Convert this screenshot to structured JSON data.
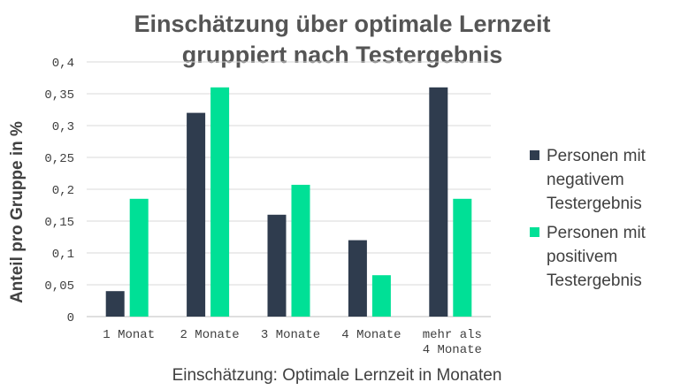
{
  "chart_data": {
    "type": "bar",
    "title": "Einschätzung über optimale Lernzeit",
    "subtitle": "gruppiert nach Testergebnis",
    "xlabel": "Einschätzung: Optimale Lernzeit in Monaten",
    "ylabel": "Anteil pro Gruppe in %",
    "categories": [
      [
        "1 Monat"
      ],
      [
        "2 Monate"
      ],
      [
        "3 Monate"
      ],
      [
        "4 Monate"
      ],
      [
        "mehr als",
        "4 Monate"
      ]
    ],
    "series": [
      {
        "name": "Personen mit negativem Testergebnis",
        "legend_lines": [
          "Personen mit",
          "negativem",
          "Testergebnis"
        ],
        "color": "#2f3c4e",
        "values": [
          0.04,
          0.32,
          0.16,
          0.12,
          0.36
        ]
      },
      {
        "name": "Personen mit positivem Testergebnis",
        "legend_lines": [
          "Personen mit",
          "positivem",
          "Testergebnis"
        ],
        "color": "#00e096",
        "values": [
          0.185,
          0.36,
          0.207,
          0.065,
          0.185
        ]
      }
    ],
    "ylim": [
      0,
      0.4
    ],
    "yticks": [
      0,
      0.05,
      0.1,
      0.15,
      0.2,
      0.25,
      0.3,
      0.35,
      0.4
    ],
    "ytick_labels": [
      "0",
      "0,05",
      "0,1",
      "0,15",
      "0,2",
      "0,25",
      "0,3",
      "0,35",
      "0,4"
    ],
    "grid": true,
    "legend_position": "right"
  }
}
